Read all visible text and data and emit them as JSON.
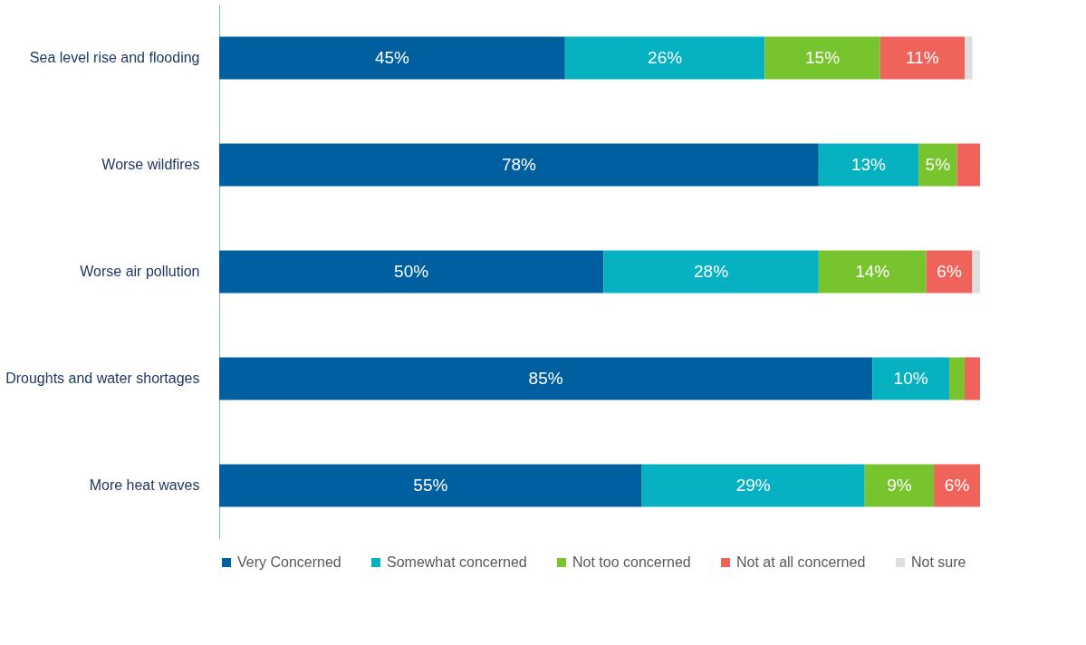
{
  "chart_data": {
    "type": "bar",
    "orientation": "horizontal",
    "stacked": true,
    "legend": "bottom",
    "grid": false,
    "categories": [
      "Sea level rise and flooding",
      "Worse wildfires",
      "Worse air pollution",
      "Droughts and water shortages",
      "More heat waves"
    ],
    "series": [
      {
        "name": "Very Concerned",
        "color": "#005f9e",
        "values": [
          45,
          78,
          50,
          85,
          55
        ],
        "value_labels": [
          "45%",
          "78%",
          "50%",
          "85%",
          "55%"
        ]
      },
      {
        "name": "Somewhat concerned",
        "color": "#06b1c1",
        "values": [
          26,
          13,
          28,
          10,
          29
        ],
        "value_labels": [
          "26%",
          "13%",
          "28%",
          "10%",
          "29%"
        ]
      },
      {
        "name": "Not too concerned",
        "color": "#78c42e",
        "values": [
          15,
          5,
          14,
          2,
          9
        ],
        "value_labels": [
          "15%",
          "5%",
          "14%",
          null,
          "9%"
        ]
      },
      {
        "name": "Not at all concerned",
        "color": "#f0635a",
        "values": [
          11,
          3,
          6,
          2,
          6
        ],
        "value_labels": [
          "11%",
          null,
          "6%",
          null,
          "6%"
        ]
      },
      {
        "name": "Not sure",
        "color": "#dedede",
        "values": [
          1,
          0,
          1,
          0,
          0
        ],
        "value_labels": [
          null,
          null,
          null,
          null,
          null
        ]
      }
    ]
  }
}
